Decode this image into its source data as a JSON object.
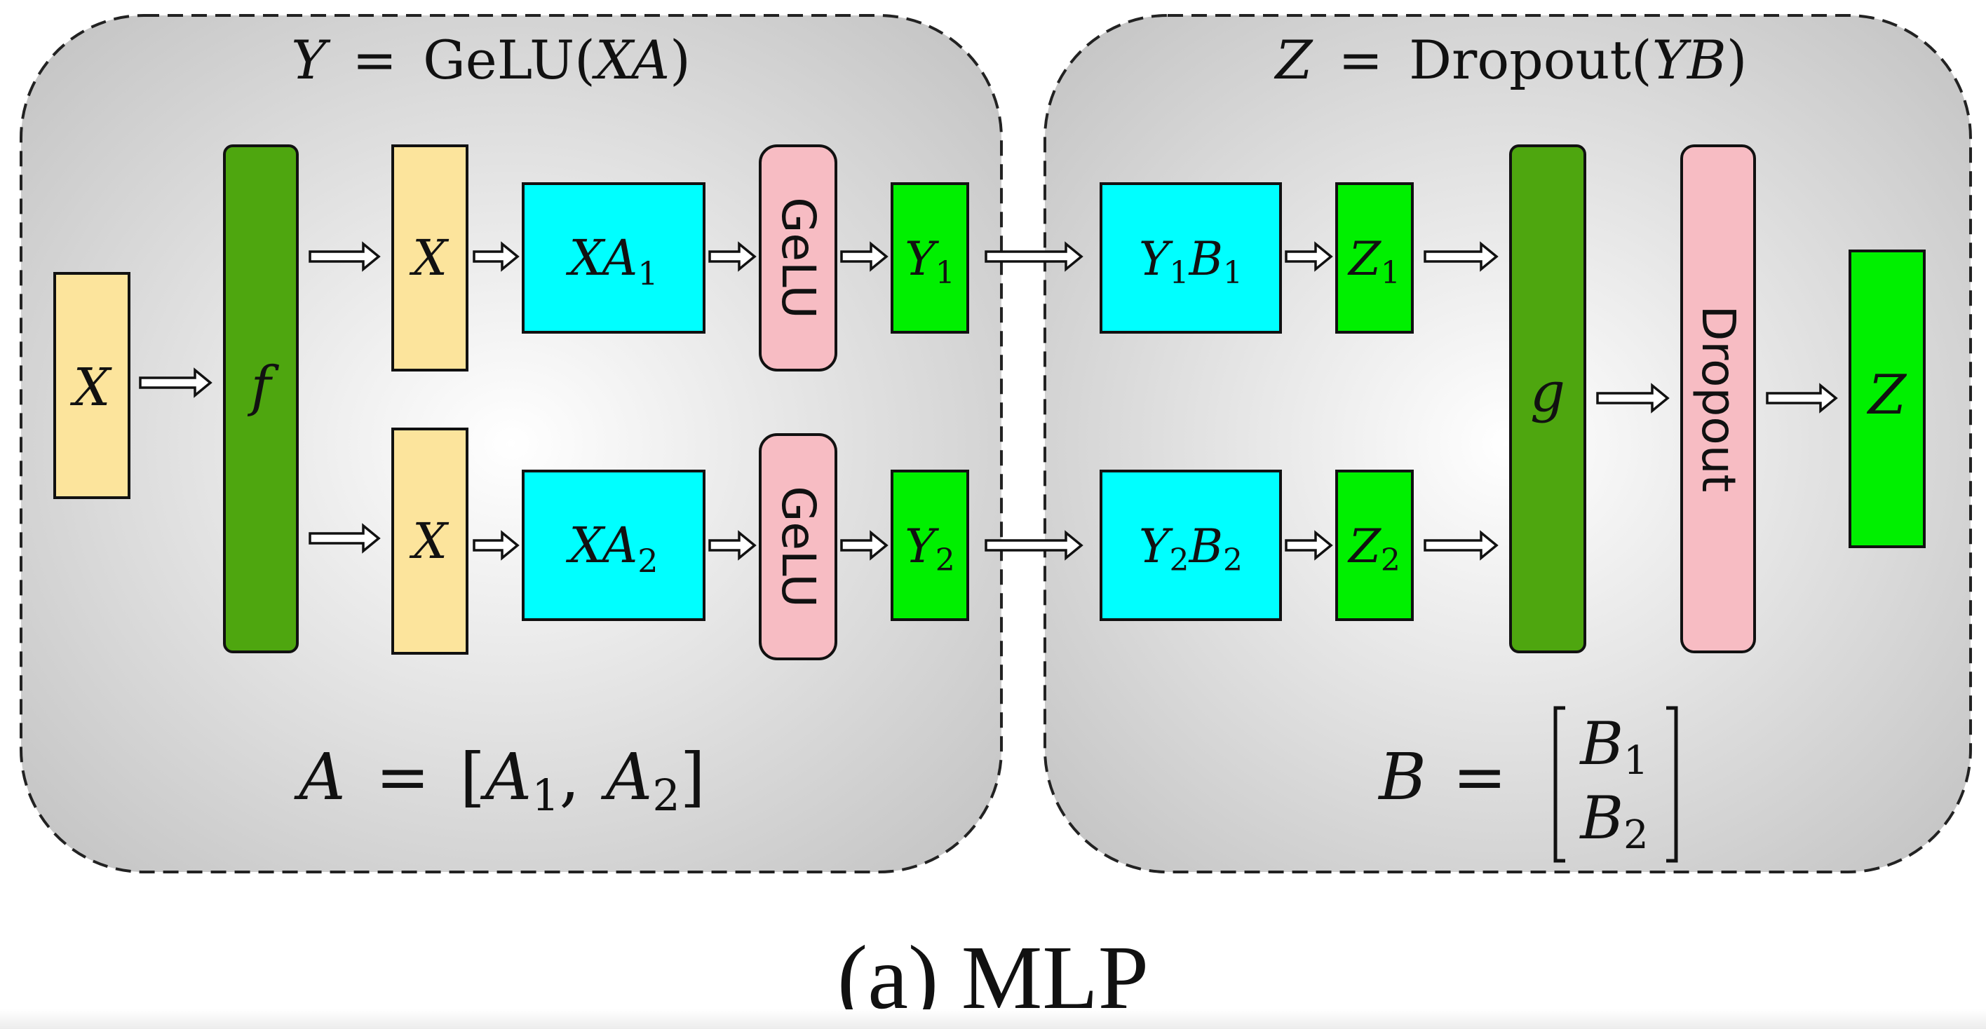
{
  "colors": {
    "panel_center": "#ffffff",
    "panel_edge": "#c2c2c2",
    "input_box": "#fce49c",
    "dark_green": "#4ea60f",
    "cyan": "#00ffff",
    "pink": "#f7bcc3",
    "bright_green": "#00f000",
    "stroke": "#111111"
  },
  "left_panel": {
    "title": {
      "var": "Y",
      "eq": "=",
      "func": "GeLU",
      "arg": "XA"
    },
    "input_label": "X",
    "split_label": "f",
    "rows": [
      {
        "x_label": "X",
        "mat": "XA",
        "mat_sub": "1",
        "act": "GeLU",
        "out": "Y",
        "out_sub": "1"
      },
      {
        "x_label": "X",
        "mat": "XA",
        "mat_sub": "2",
        "act": "GeLU",
        "out": "Y",
        "out_sub": "2"
      }
    ],
    "footer": {
      "lhs": "A",
      "eq": "=",
      "el1": "A",
      "sub1": "1",
      "el2": "A",
      "sub2": "2"
    }
  },
  "right_panel": {
    "title": {
      "var": "Z",
      "eq": "=",
      "func": "Dropout",
      "arg": "YB"
    },
    "rows": [
      {
        "y": "Y",
        "y_sub": "1",
        "b": "B",
        "b_sub": "1",
        "out": "Z",
        "out_sub": "1"
      },
      {
        "y": "Y",
        "y_sub": "2",
        "b": "B",
        "b_sub": "2",
        "out": "Z",
        "out_sub": "2"
      }
    ],
    "gather_label": "g",
    "dropout_label": "Dropout",
    "output_label": "Z",
    "footer": {
      "lhs": "B",
      "eq": "=",
      "el1": "B",
      "sub1": "1",
      "el2": "B",
      "sub2": "2"
    }
  },
  "caption": "(a) MLP"
}
